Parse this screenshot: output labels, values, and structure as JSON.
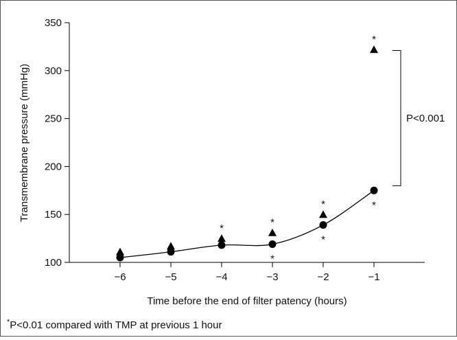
{
  "chart_data": {
    "type": "line",
    "x_label": "Time before the end of filter patency (hours)",
    "y_label": "Transmembrane pressure (mmHg)",
    "x": [
      -6,
      -5,
      -4,
      -3,
      -2,
      -1
    ],
    "series": [
      {
        "marker": "circle",
        "line": true,
        "color": "#000000",
        "values": [
          105,
          111,
          118,
          119,
          139,
          175
        ]
      },
      {
        "marker": "triangle",
        "line": false,
        "color": "#000000",
        "values": [
          111,
          117,
          125,
          131,
          150,
          322
        ]
      }
    ],
    "xlim": [
      -7,
      0
    ],
    "xticks": [
      {
        "value": -6,
        "label": "−6"
      },
      {
        "value": -5,
        "label": "−5"
      },
      {
        "value": -4,
        "label": "−4"
      },
      {
        "value": -3,
        "label": "−3"
      },
      {
        "value": -2,
        "label": "−2"
      },
      {
        "value": -1,
        "label": "−1"
      }
    ],
    "ylim": [
      100,
      350
    ],
    "yticks": [
      100,
      150,
      200,
      250,
      300,
      350
    ],
    "annotations": [
      {
        "text": "*",
        "x": -4,
        "series": 1,
        "side": "above"
      },
      {
        "text": "*",
        "x": -3,
        "series": 1,
        "side": "above"
      },
      {
        "text": "*",
        "x": -3,
        "series": 0,
        "side": "below"
      },
      {
        "text": "*",
        "x": -2,
        "series": 1,
        "side": "above"
      },
      {
        "text": "*",
        "x": -2,
        "series": 0,
        "side": "below"
      },
      {
        "text": "*",
        "x": -1,
        "series": 1,
        "side": "above"
      },
      {
        "text": "*",
        "x": -1,
        "series": 0,
        "side": "below"
      }
    ],
    "bracket": {
      "text": "P<0.001",
      "from": 180,
      "to": 321
    },
    "footnote": {
      "mark": "*",
      "text": "P<0.01 compared with TMP at previous 1 hour"
    }
  }
}
